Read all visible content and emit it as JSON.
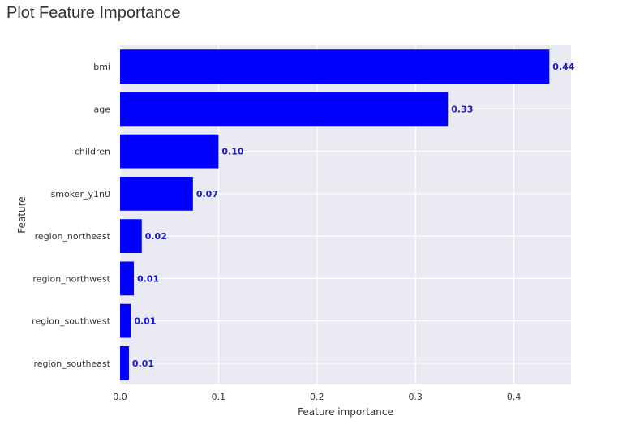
{
  "header": {
    "title": "Plot Feature Importance"
  },
  "chart_data": {
    "type": "bar",
    "orientation": "horizontal",
    "categories": [
      "bmi",
      "age",
      "children",
      "smoker_y1n0",
      "region_northeast",
      "region_northwest",
      "region_southwest",
      "region_southeast"
    ],
    "values": [
      0.436,
      0.333,
      0.1,
      0.074,
      0.022,
      0.014,
      0.011,
      0.009
    ],
    "data_labels": [
      "0.44",
      "0.33",
      "0.10",
      "0.07",
      "0.02",
      "0.01",
      "0.01",
      "0.01"
    ],
    "xlabel": "Feature importance",
    "ylabel": "Feature",
    "xlim": [
      0,
      0.458
    ],
    "x_ticks": [
      0.0,
      0.1,
      0.2,
      0.3,
      0.4
    ],
    "x_tick_labels": [
      "0.0",
      "0.1",
      "0.2",
      "0.3",
      "0.4"
    ],
    "grid": true,
    "colors": {
      "bar": "#0000ff",
      "data_label": "#1a1acc",
      "plot_background": "#eaeaf2",
      "grid": "#ffffff"
    }
  }
}
